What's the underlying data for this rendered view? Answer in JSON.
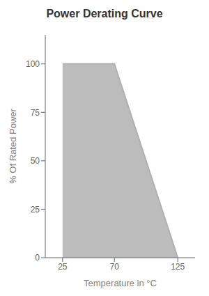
{
  "chart_data": {
    "type": "area",
    "title": "Power Derating Curve",
    "x_label": "Temperature in °C",
    "y_label": "% Of Rated Power",
    "x": [
      25,
      70,
      125
    ],
    "values": [
      100,
      100,
      0
    ],
    "color": "#b0b0b0",
    "xlim": [
      10,
      140
    ],
    "ylim": [
      0,
      115
    ],
    "xticks": [
      25,
      70,
      125
    ],
    "yticks": [
      0,
      25,
      50,
      75,
      100
    ],
    "grid": false
  }
}
